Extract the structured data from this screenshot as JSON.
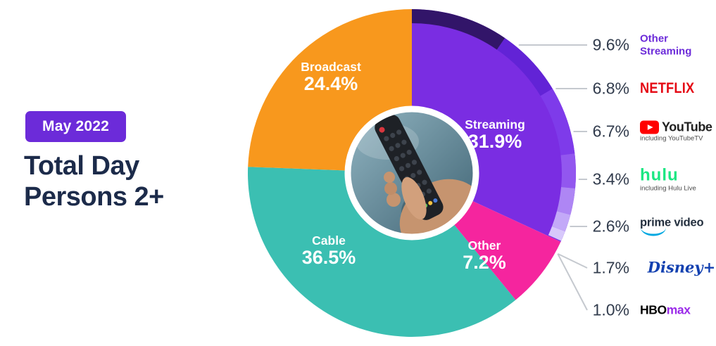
{
  "badge": {
    "label": "May 2022",
    "color": "#6C2BD9"
  },
  "title": {
    "line1": "Total Day",
    "line2": "Persons 2+"
  },
  "center_image_alt": "hand holding TV remote",
  "chart_data": {
    "type": "pie",
    "title": "Total Day Persons 2+ — May 2022 TV viewing share",
    "donut": true,
    "start_angle_deg": 0,
    "clockwise": true,
    "slices": [
      {
        "label": "Streaming",
        "value": 31.9,
        "display": "31.9%",
        "color": "#7A2DE2"
      },
      {
        "label": "Other",
        "value": 7.2,
        "display": "7.2%",
        "color": "#F5259E"
      },
      {
        "label": "Cable",
        "value": 36.5,
        "display": "36.5%",
        "color": "#3BBFB2"
      },
      {
        "label": "Broadcast",
        "value": 24.4,
        "display": "24.4%",
        "color": "#F8981D"
      }
    ],
    "streaming_breakdown": [
      {
        "label": "Other Streaming",
        "value": 9.6,
        "color": "#321569"
      },
      {
        "label": "Netflix",
        "value": 6.8,
        "color": "#6223D6"
      },
      {
        "label": "YouTube",
        "value": 6.7,
        "color": "#7E3BEA"
      },
      {
        "label": "Hulu",
        "value": 3.4,
        "color": "#9257EF"
      },
      {
        "label": "Prime Video",
        "value": 2.6,
        "color": "#AE86F4"
      },
      {
        "label": "Disney+",
        "value": 1.7,
        "color": "#C3A9F8"
      },
      {
        "label": "HBO Max",
        "value": 1.0,
        "color": "#D7C8FB"
      }
    ]
  },
  "legend": {
    "rows": [
      {
        "percent": "9.6%",
        "line1": "Other",
        "line2": "Streaming"
      },
      {
        "percent": "6.8%",
        "brand": "NETFLIX"
      },
      {
        "percent": "6.7%",
        "brand": "YouTube",
        "note": "including YouTubeTV"
      },
      {
        "percent": "3.4%",
        "brand": "hulu",
        "note": "including Hulu Live"
      },
      {
        "percent": "2.6%",
        "brand": "prime video"
      },
      {
        "percent": "1.7%",
        "brand": "Disney+"
      },
      {
        "percent": "1.0%",
        "brand_a": "HBO",
        "brand_b": "max"
      }
    ]
  }
}
